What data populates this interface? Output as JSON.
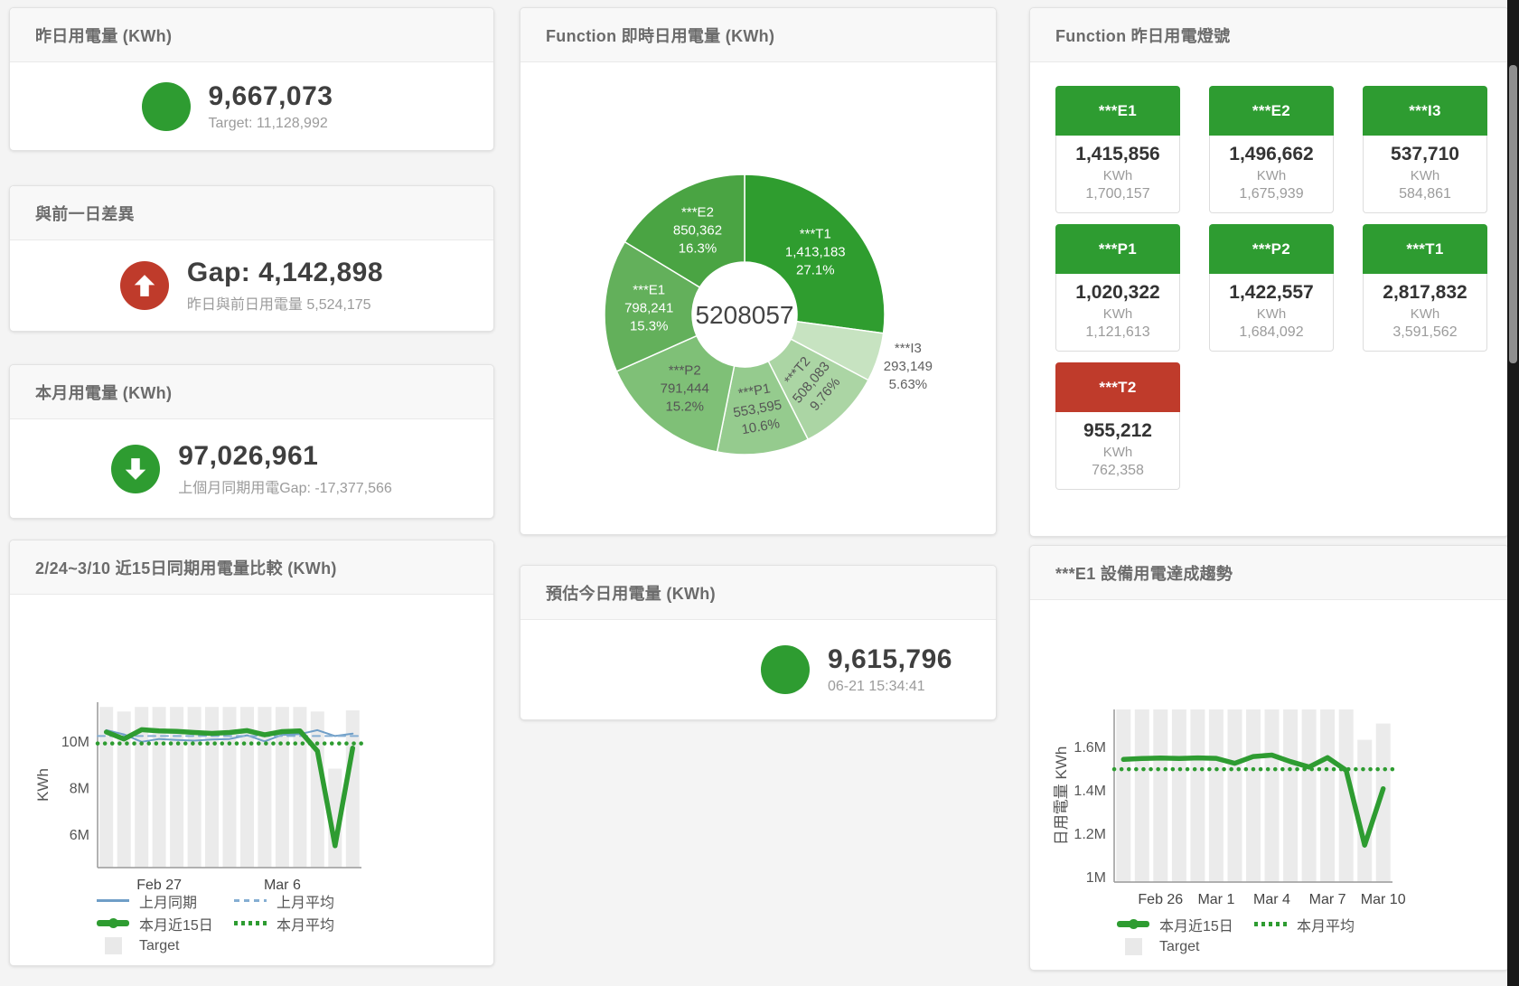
{
  "colors": {
    "green": "#2e9c31",
    "red": "#bf3b2b",
    "blue": "#6f9ec7",
    "blue_light": "#85aed3",
    "target_bar": "#ebebeb",
    "page_bg": "#f4f4f4"
  },
  "stat_cards": {
    "yesterday": {
      "title": "昨日用電量 (KWh)",
      "value": "9,667,073",
      "subtitle": "Target: 11,128,992",
      "icon": "green-circle"
    },
    "day_gap": {
      "title": "與前一日差異",
      "value": "Gap: 4,142,898",
      "subtitle": "昨日與前日用電量 5,524,175",
      "icon": "red-circle-arrow-up"
    },
    "month": {
      "title": "本月用電量 (KWh)",
      "value": "97,026,961",
      "subtitle": "上個月同期用電Gap: -17,377,566",
      "icon": "green-circle-arrow-down"
    },
    "today_estimate": {
      "title": "預估今日用電量 (KWh)",
      "value": "9,615,796",
      "subtitle": "06-21 15:34:41",
      "icon": "green-circle"
    }
  },
  "lamp_panel": {
    "title": "Function 昨日用電燈號",
    "tiles": [
      {
        "name": "***E1",
        "value": "1,415,856",
        "unit": "KWh",
        "target": "1,700,157",
        "status": "green"
      },
      {
        "name": "***E2",
        "value": "1,496,662",
        "unit": "KWh",
        "target": "1,675,939",
        "status": "green"
      },
      {
        "name": "***I3",
        "value": "537,710",
        "unit": "KWh",
        "target": "584,861",
        "status": "green"
      },
      {
        "name": "***P1",
        "value": "1,020,322",
        "unit": "KWh",
        "target": "1,121,613",
        "status": "green"
      },
      {
        "name": "***P2",
        "value": "1,422,557",
        "unit": "KWh",
        "target": "1,684,092",
        "status": "green"
      },
      {
        "name": "***T1",
        "value": "2,817,832",
        "unit": "KWh",
        "target": "3,591,562",
        "status": "green"
      },
      {
        "name": "***T2",
        "value": "955,212",
        "unit": "KWh",
        "target": "762,358",
        "status": "red"
      }
    ]
  },
  "chart_data": [
    {
      "type": "pie",
      "title": "Function 即時日用電量 (KWh)",
      "center_total": "5208057",
      "segments": [
        {
          "name": "***T1",
          "value": 1413183,
          "pct": "27.1%",
          "color": "#2f9d2f",
          "label_color": "#ffffff",
          "label_radius": 104
        },
        {
          "name": "***I3",
          "value": 293149,
          "pct": "5.63%",
          "color": "#c7e3c1",
          "label_color": "#5f5f5f",
          "label_radius": 190
        },
        {
          "name": "***T2",
          "value": 508083,
          "pct": "9.76%",
          "color": "#abd5a4",
          "label_color": "#555555",
          "label_rotate": -50
        },
        {
          "name": "***P1",
          "value": 553595,
          "pct": "10.6%",
          "color": "#95cb8e",
          "label_color": "#555555",
          "label_rotate": -10
        },
        {
          "name": "***P2",
          "value": 791444,
          "pct": "15.2%",
          "color": "#7fc077",
          "label_color": "#555555"
        },
        {
          "name": "***E1",
          "value": 798241,
          "pct": "15.3%",
          "color": "#63b05b",
          "label_color": "#ffffff"
        },
        {
          "name": "***E2",
          "value": 850362,
          "pct": "16.3%",
          "color": "#4aa443",
          "label_color": "#ffffff"
        }
      ]
    },
    {
      "type": "line",
      "title": "2/24~3/10 近15日同期用電量比較 (KWh)",
      "ylabel": "KWh",
      "ylim": [
        4.6,
        11.7
      ],
      "yticks": [
        {
          "v": 6,
          "label": "6M"
        },
        {
          "v": 8,
          "label": "8M"
        },
        {
          "v": 10,
          "label": "10M"
        }
      ],
      "xticks": [
        {
          "i": 3,
          "label": "Feb 27"
        },
        {
          "i": 10,
          "label": "Mar 6"
        }
      ],
      "target": {
        "name": "Target",
        "color": "#ebebeb",
        "values": [
          11.5,
          11.3,
          11.5,
          11.5,
          11.5,
          11.5,
          11.5,
          11.5,
          11.5,
          11.5,
          11.5,
          11.5,
          11.3,
          8.85,
          11.35
        ]
      },
      "series": [
        {
          "name": "上月同期",
          "color": "#6f9ec7",
          "style": "solid",
          "width": 2,
          "values": [
            10.5,
            10.32,
            10.0,
            10.12,
            10.08,
            10.05,
            10.1,
            10.12,
            10.28,
            10.02,
            10.3,
            10.33,
            10.5,
            10.25,
            10.35
          ]
        },
        {
          "name": "上月平均",
          "color": "#85aed3",
          "style": "dashed",
          "width": 2,
          "constant": 10.25
        },
        {
          "name": "本月平均",
          "color": "#2e9c31",
          "style": "dotted",
          "width": 4.5,
          "constant": 9.93
        },
        {
          "name": "本月近15日",
          "color": "#2e9c31",
          "style": "solid",
          "width": 5.5,
          "values": [
            10.42,
            10.12,
            10.52,
            10.47,
            10.45,
            10.4,
            10.36,
            10.4,
            10.48,
            10.3,
            10.44,
            10.47,
            9.6,
            5.54,
            9.73
          ]
        }
      ],
      "legend": [
        {
          "label": "上月同期",
          "swatch": "line",
          "color": "#6f9ec7"
        },
        {
          "label": "上月平均",
          "swatch": "dash",
          "color": "#85aed3"
        },
        {
          "label": "本月近15日",
          "swatch": "thick",
          "color": "#2e9c31"
        },
        {
          "label": "本月平均",
          "swatch": "dots",
          "color": "#2e9c31"
        },
        {
          "label": "Target",
          "swatch": "square",
          "color": "#e9e9e9"
        }
      ],
      "legend_rows": [
        [
          0,
          1
        ],
        [
          2,
          3
        ],
        [
          4
        ]
      ]
    },
    {
      "type": "line",
      "title": "***E1 設備用電達成趨勢",
      "ylabel": "日用電量 KWh",
      "ylim": [
        0.98,
        1.775
      ],
      "yticks": [
        {
          "v": 1,
          "label": "1M"
        },
        {
          "v": 1.2,
          "label": "1.2M"
        },
        {
          "v": 1.4,
          "label": "1.4M"
        },
        {
          "v": 1.6,
          "label": "1.6M"
        }
      ],
      "xticks": [
        {
          "i": 2,
          "label": "Feb 26"
        },
        {
          "i": 5,
          "label": "Mar 1"
        },
        {
          "i": 8,
          "label": "Mar 4"
        },
        {
          "i": 11,
          "label": "Mar 7"
        },
        {
          "i": 14,
          "label": "Mar 10"
        }
      ],
      "target": {
        "name": "Target",
        "color": "#ebebeb",
        "values": [
          1.775,
          1.775,
          1.775,
          1.775,
          1.775,
          1.775,
          1.775,
          1.775,
          1.775,
          1.775,
          1.775,
          1.775,
          1.775,
          1.635,
          1.71
        ]
      },
      "series": [
        {
          "name": "本月平均",
          "color": "#2e9c31",
          "style": "dotted",
          "width": 4.5,
          "constant": 1.5
        },
        {
          "name": "本月近15日",
          "color": "#2e9c31",
          "style": "solid",
          "width": 5.5,
          "values": [
            1.545,
            1.549,
            1.551,
            1.549,
            1.552,
            1.55,
            1.527,
            1.558,
            1.565,
            1.535,
            1.51,
            1.553,
            1.495,
            1.15,
            1.41
          ]
        }
      ],
      "legend": [
        {
          "label": "本月近15日",
          "swatch": "thick",
          "color": "#2e9c31"
        },
        {
          "label": "本月平均",
          "swatch": "dots",
          "color": "#2e9c31"
        },
        {
          "label": "Target",
          "swatch": "square",
          "color": "#e9e9e9"
        }
      ],
      "legend_rows": [
        [
          0,
          1
        ],
        [
          2
        ]
      ]
    }
  ]
}
